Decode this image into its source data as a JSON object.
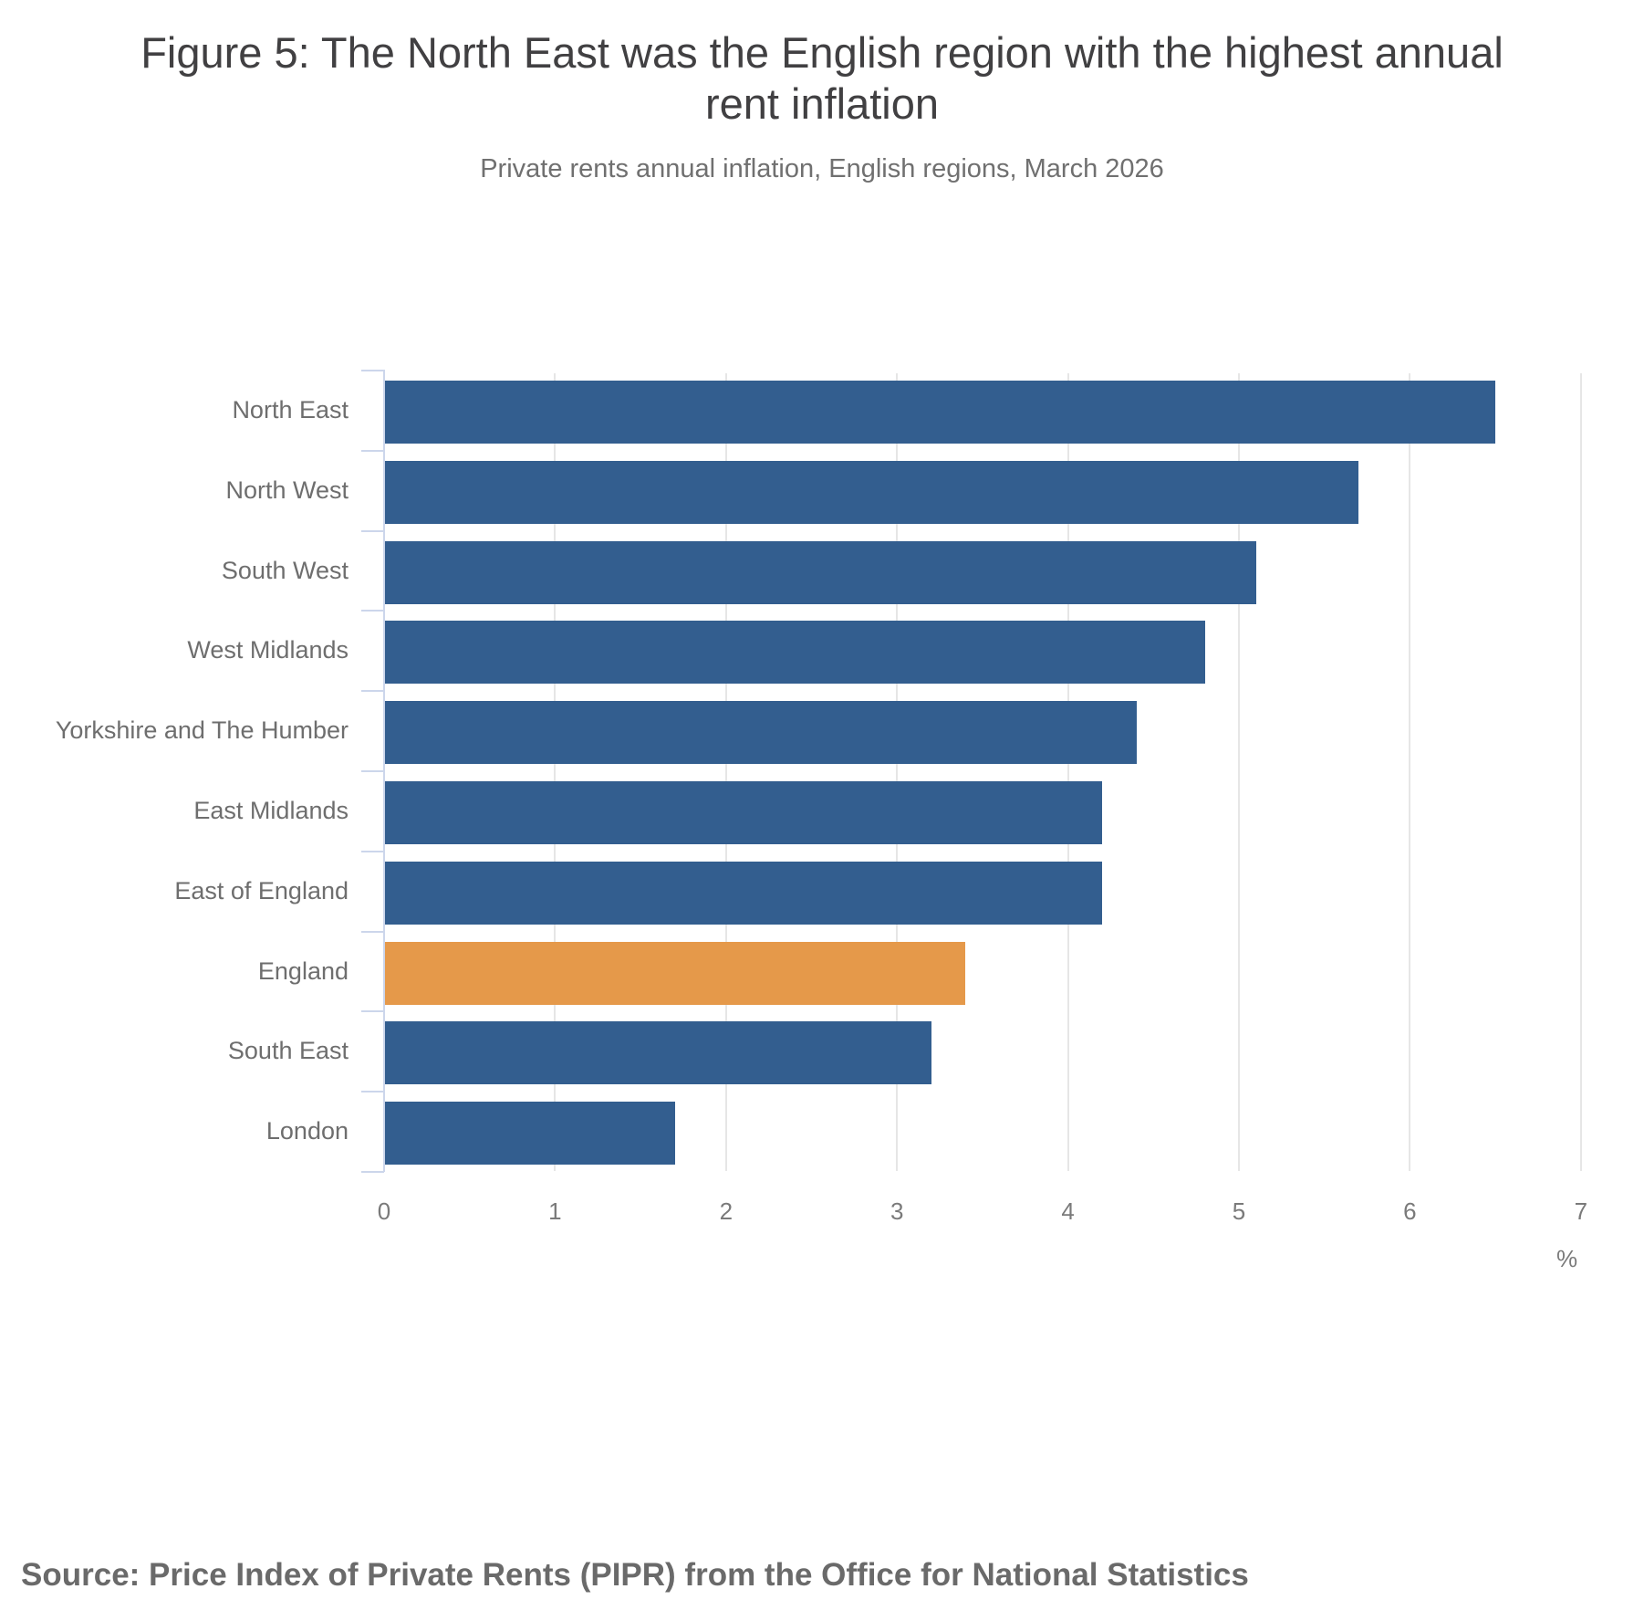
{
  "header": {
    "title_line1": "Figure 5: The North East was the English region with the highest annual",
    "title_line2": "rent inflation",
    "subtitle": "Private rents annual inflation, English regions, March 2026"
  },
  "footer": {
    "source": "Source: Price Index of Private Rents (PIPR) from the Office for National Statistics"
  },
  "colors": {
    "region_bar": "#335e8f",
    "england_bar": "#e5994a",
    "gridline": "#e6e6e6",
    "axis": "#ccd6eb"
  },
  "chart_data": {
    "type": "bar",
    "orientation": "horizontal",
    "title": "Figure 5: The North East was the English region with the highest annual rent inflation",
    "subtitle": "Private rents annual inflation, English regions, March 2026",
    "categories": [
      "North East",
      "North West",
      "South West",
      "West Midlands",
      "Yorkshire and The Humber",
      "East Midlands",
      "East of England",
      "England",
      "South East",
      "London"
    ],
    "values": [
      6.5,
      5.7,
      5.1,
      4.8,
      4.4,
      4.2,
      4.2,
      3.4,
      3.2,
      1.7
    ],
    "highlight": "England",
    "xlabel": "%",
    "ylabel": "",
    "xlim": [
      0,
      7
    ],
    "xticks": [
      "0",
      "1",
      "2",
      "3",
      "4",
      "5",
      "6",
      "7"
    ],
    "grid": true,
    "legend": "none",
    "source": "Source: Price Index of Private Rents (PIPR) from the Office for National Statistics"
  }
}
